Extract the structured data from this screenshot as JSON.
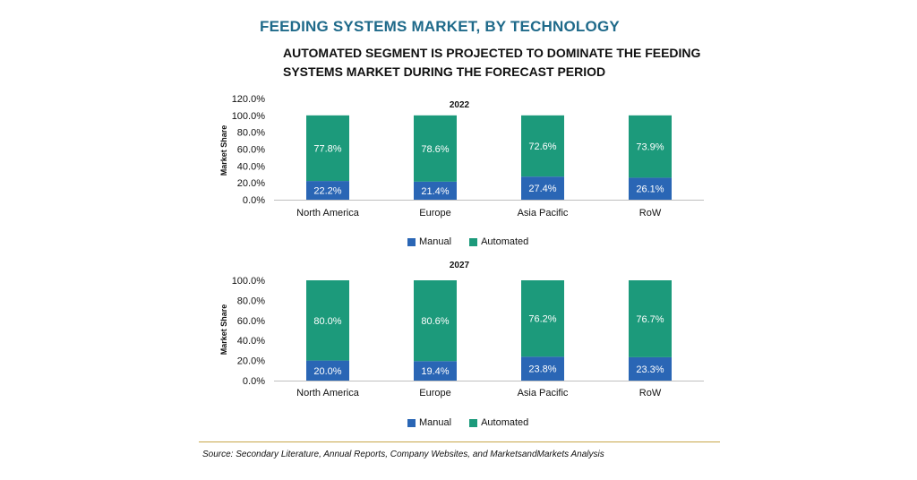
{
  "header": {
    "title": "FEEDING SYSTEMS MARKET, BY TECHNOLOGY",
    "subtitle": "AUTOMATED SEGMENT IS PROJECTED TO DOMINATE THE FEEDING SYSTEMS MARKET DURING THE FORECAST PERIOD"
  },
  "colors": {
    "manual": "#2a66b5",
    "automated": "#1c9a7b",
    "rule": "#c8a64a"
  },
  "legend": {
    "manual": "Manual",
    "automated": "Automated"
  },
  "source": "Source: Secondary Literature, Annual Reports, Company Websites, and MarketsandMarkets Analysis",
  "chart_data": [
    {
      "type": "bar",
      "stacked": true,
      "title": "2022",
      "ylabel": "Market Share",
      "ylim": [
        0,
        120
      ],
      "yticks": [
        "0.0%",
        "20.0%",
        "40.0%",
        "60.0%",
        "80.0%",
        "100.0%",
        "120.0%"
      ],
      "categories": [
        "North America",
        "Europe",
        "Asia Pacific",
        "RoW"
      ],
      "series": [
        {
          "name": "Manual",
          "values": [
            22.2,
            21.4,
            27.4,
            26.1
          ],
          "labels": [
            "22.2%",
            "21.4%",
            "27.4%",
            "26.1%"
          ]
        },
        {
          "name": "Automated",
          "values": [
            77.8,
            78.6,
            72.6,
            73.9
          ],
          "labels": [
            "77.8%",
            "78.6%",
            "72.6%",
            "73.9%"
          ]
        }
      ],
      "legend": "bottom"
    },
    {
      "type": "bar",
      "stacked": true,
      "title": "2027",
      "ylabel": "Market Share",
      "ylim": [
        0,
        100
      ],
      "yticks": [
        "0.0%",
        "20.0%",
        "40.0%",
        "60.0%",
        "80.0%",
        "100.0%"
      ],
      "categories": [
        "North America",
        "Europe",
        "Asia Pacific",
        "RoW"
      ],
      "series": [
        {
          "name": "Manual",
          "values": [
            20.0,
            19.4,
            23.8,
            23.3
          ],
          "labels": [
            "20.0%",
            "19.4%",
            "23.8%",
            "23.3%"
          ]
        },
        {
          "name": "Automated",
          "values": [
            80.0,
            80.6,
            76.2,
            76.7
          ],
          "labels": [
            "80.0%",
            "80.6%",
            "76.2%",
            "76.7%"
          ]
        }
      ],
      "legend": "bottom"
    }
  ]
}
